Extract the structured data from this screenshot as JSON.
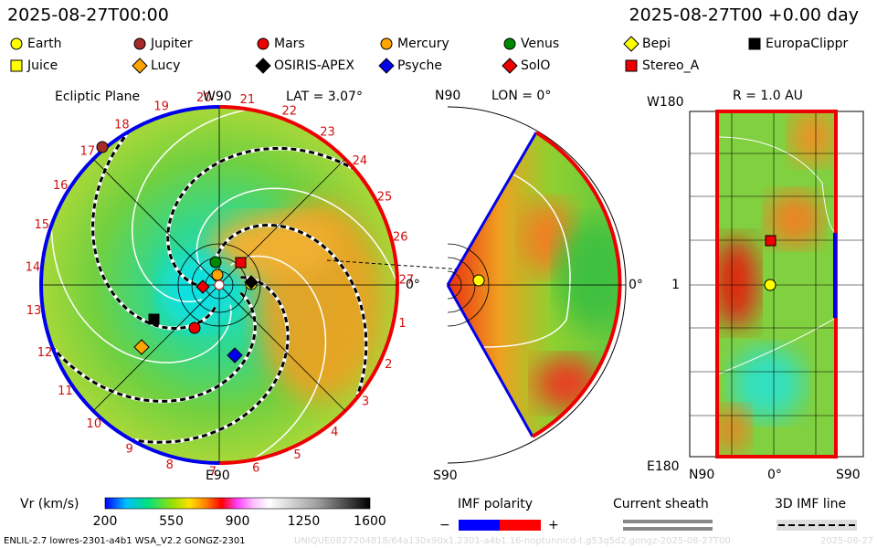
{
  "header": {
    "time": "2025-08-27T00:00",
    "elapsed": "2025-08-27T00 +0.00 day"
  },
  "legend": [
    {
      "name": "Earth",
      "shape": "circle",
      "color": "#ffff00"
    },
    {
      "name": "Jupiter",
      "shape": "circle",
      "color": "#a52a2a"
    },
    {
      "name": "Mars",
      "shape": "circle",
      "color": "#ee0000"
    },
    {
      "name": "Mercury",
      "shape": "circle",
      "color": "#ffa500"
    },
    {
      "name": "Venus",
      "shape": "circle",
      "color": "#008800"
    },
    {
      "name": "Bepi",
      "shape": "diamond",
      "color": "#ffff00"
    },
    {
      "name": "EuropaClippr",
      "shape": "square",
      "color": "#000000"
    },
    {
      "name": "Juice",
      "shape": "square",
      "color": "#ffff00"
    },
    {
      "name": "Lucy",
      "shape": "diamond",
      "color": "#ffa500"
    },
    {
      "name": "OSIRIS-APEX",
      "shape": "diamond",
      "color": "#000000"
    },
    {
      "name": "Psyche",
      "shape": "diamond",
      "color": "#0000ee"
    },
    {
      "name": "SolO",
      "shape": "diamond",
      "color": "#ee0000"
    },
    {
      "name": "Stereo_A",
      "shape": "square",
      "color": "#ee0000"
    }
  ],
  "ecliptic": {
    "title": "Ecliptic Plane",
    "top": "W90",
    "lat": "LAT = 3.07°",
    "bottom": "E90",
    "right": "0°",
    "ring": [
      "1",
      "2",
      "3",
      "4",
      "5",
      "6",
      "7",
      "8",
      "9",
      "10",
      "11",
      "12",
      "13",
      "14",
      "15",
      "16",
      "17",
      "18",
      "19",
      "20",
      "21",
      "22",
      "23",
      "24",
      "25",
      "26",
      "27"
    ]
  },
  "meridional": {
    "top": "N90",
    "lon": "LON = 0°",
    "right": "0°",
    "bottom": "S90"
  },
  "sphere": {
    "top_left": "W180",
    "title": "R = 1.0 AU",
    "left_mid": "1",
    "bottom_left": "E180",
    "bottom": [
      "N90",
      "0°",
      "S90"
    ]
  },
  "colorbar": {
    "label": "Vr (km/s)",
    "ticks": [
      "200",
      "550",
      "900",
      "1250",
      "1600"
    ]
  },
  "imf": {
    "label": "IMF polarity",
    "minus": "−",
    "plus": "+"
  },
  "sheath": {
    "label": "Current sheath"
  },
  "imfline": {
    "label": "3D IMF line"
  },
  "footer": {
    "model": "ENLIL-2.7 lowres-2301-a4b1 WSA_V2.2 GONGZ-2301",
    "run": "UNIQUE0827204818/64a130x90x1.2301-a4b1.16-noptunnicd-t.g53q5d2.gongz-2025-08-27T00",
    "date": "2025-08-27"
  }
}
